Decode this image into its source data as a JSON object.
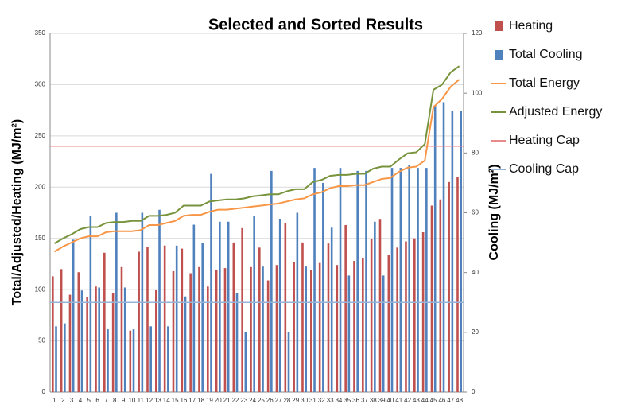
{
  "chart_data": {
    "type": "combo",
    "title": "Selected and Sorted Results",
    "ylabel": "Total/Adjusted/Heating (MJ/m²)",
    "y2label": "Cooling (MJ/m²)",
    "categories": [
      1,
      2,
      3,
      4,
      5,
      6,
      7,
      8,
      9,
      10,
      11,
      12,
      13,
      14,
      15,
      16,
      17,
      18,
      19,
      20,
      21,
      22,
      23,
      24,
      25,
      26,
      27,
      28,
      29,
      30,
      31,
      32,
      33,
      34,
      35,
      36,
      37,
      38,
      39,
      40,
      41,
      42,
      43,
      44,
      45,
      46,
      47,
      48
    ],
    "ylim": [
      0,
      350
    ],
    "yticks": [
      0,
      50,
      100,
      150,
      200,
      250,
      300,
      350
    ],
    "y2lim": [
      0,
      120
    ],
    "y2ticks": [
      0,
      20,
      40,
      60,
      80,
      100,
      120
    ],
    "grid": true,
    "series": [
      {
        "name": "Heating",
        "kind": "bar",
        "color": "#c0504d",
        "axis": "y",
        "values": [
          113,
          120,
          95,
          117,
          93,
          103,
          136,
          97,
          122,
          60,
          137,
          142,
          100,
          143,
          118,
          140,
          116,
          122,
          103,
          119,
          121,
          146,
          160,
          122,
          141,
          109,
          124,
          165,
          127,
          146,
          119,
          126,
          145,
          124,
          163,
          128,
          131,
          149,
          169,
          134,
          141,
          147,
          150,
          156,
          182,
          188,
          205,
          210
        ]
      },
      {
        "name": "Total Cooling",
        "kind": "bar",
        "color": "#4f81bd",
        "axis": "y2",
        "values": [
          22,
          23,
          51,
          34,
          59,
          35,
          21,
          60,
          35,
          21,
          60,
          22,
          61,
          22,
          49,
          32,
          56,
          50,
          73,
          57,
          57,
          33,
          20,
          59,
          42,
          74,
          58,
          20,
          60,
          42,
          75,
          70,
          55,
          75,
          39,
          74,
          74,
          57,
          39,
          75,
          75,
          76,
          75,
          75,
          96,
          97,
          94,
          94
        ]
      },
      {
        "name": "Total Energy",
        "kind": "line",
        "color": "#f79646",
        "axis": "y",
        "values": [
          137,
          142,
          146,
          150,
          152,
          152,
          156,
          157,
          157,
          157,
          158,
          163,
          163,
          165,
          167,
          172,
          173,
          173,
          176,
          178,
          178,
          179,
          180,
          181,
          182,
          183,
          184,
          186,
          188,
          189,
          193,
          195,
          199,
          201,
          201,
          202,
          202,
          205,
          208,
          209,
          215,
          219,
          220,
          226,
          278,
          286,
          298,
          305
        ]
      },
      {
        "name": "Adjusted Energy",
        "kind": "line",
        "color": "#77933c",
        "axis": "y",
        "values": [
          145,
          150,
          154,
          159,
          161,
          161,
          165,
          166,
          166,
          167,
          167,
          172,
          172,
          173,
          175,
          182,
          182,
          182,
          186,
          187,
          188,
          188,
          189,
          191,
          192,
          193,
          193,
          196,
          198,
          198,
          205,
          207,
          211,
          212,
          212,
          213,
          213,
          218,
          220,
          220,
          227,
          233,
          234,
          242,
          295,
          300,
          312,
          318
        ]
      },
      {
        "name": "Heating Cap",
        "kind": "hline",
        "color": "#e8898a",
        "axis": "y",
        "value": 240
      },
      {
        "name": "Cooling Cap",
        "kind": "hline",
        "color": "#95b3d7",
        "axis": "y2",
        "value": 30
      }
    ]
  }
}
